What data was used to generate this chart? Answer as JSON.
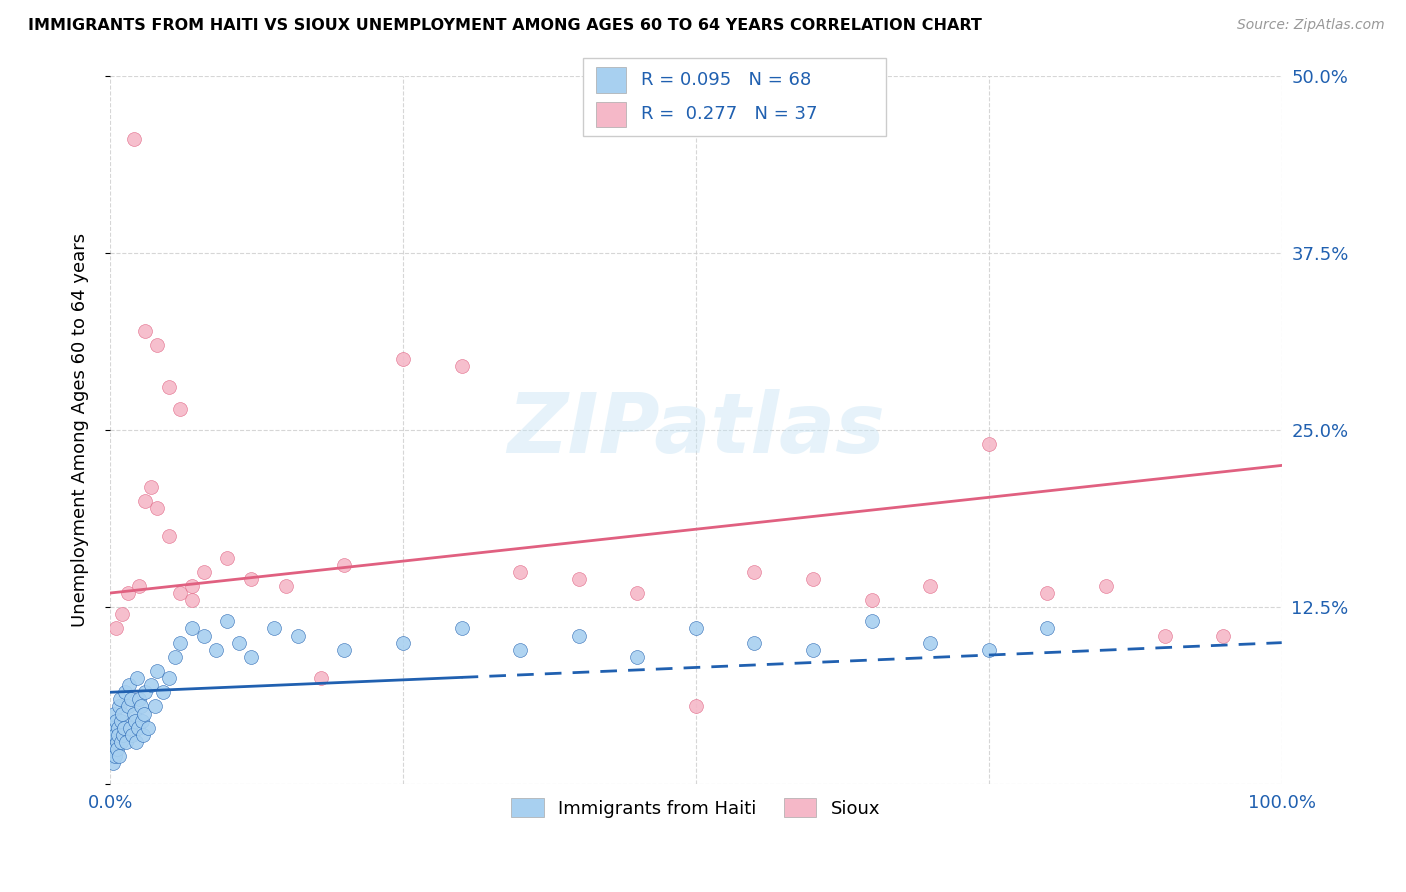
{
  "title": "IMMIGRANTS FROM HAITI VS SIOUX UNEMPLOYMENT AMONG AGES 60 TO 64 YEARS CORRELATION CHART",
  "source": "Source: ZipAtlas.com",
  "ylabel": "Unemployment Among Ages 60 to 64 years",
  "xlim": [
    0,
    100
  ],
  "ylim": [
    0,
    50
  ],
  "yticks": [
    0,
    12.5,
    25.0,
    37.5,
    50.0
  ],
  "yticklabels_right": [
    "",
    "12.5%",
    "25.0%",
    "37.5%",
    "50.0%"
  ],
  "xticks": [
    0,
    25,
    50,
    75,
    100
  ],
  "xticklabels": [
    "0.0%",
    "",
    "",
    "",
    "100.0%"
  ],
  "legend_r1": "0.095",
  "legend_n1": "68",
  "legend_r2": "0.277",
  "legend_n2": "37",
  "series1_label": "Immigrants from Haiti",
  "series2_label": "Sioux",
  "color1": "#a8d0f0",
  "color2": "#f5b8c8",
  "trendline1_color": "#2060b0",
  "trendline2_color": "#e06080",
  "watermark_text": "ZIPatlas",
  "blue_scatter_x": [
    0.1,
    0.15,
    0.2,
    0.25,
    0.3,
    0.35,
    0.4,
    0.45,
    0.5,
    0.55,
    0.6,
    0.65,
    0.7,
    0.75,
    0.8,
    0.85,
    0.9,
    0.95,
    1.0,
    1.1,
    1.2,
    1.3,
    1.4,
    1.5,
    1.6,
    1.7,
    1.8,
    1.9,
    2.0,
    2.1,
    2.2,
    2.3,
    2.4,
    2.5,
    2.6,
    2.7,
    2.8,
    2.9,
    3.0,
    3.2,
    3.5,
    3.8,
    4.0,
    4.5,
    5.0,
    5.5,
    6.0,
    7.0,
    8.0,
    9.0,
    10.0,
    11.0,
    12.0,
    14.0,
    16.0,
    20.0,
    25.0,
    30.0,
    35.0,
    40.0,
    45.0,
    50.0,
    55.0,
    60.0,
    65.0,
    70.0,
    75.0,
    80.0
  ],
  "blue_scatter_y": [
    3.0,
    2.0,
    4.0,
    1.5,
    5.0,
    2.5,
    3.5,
    2.0,
    4.5,
    3.0,
    2.5,
    4.0,
    3.5,
    5.5,
    2.0,
    6.0,
    3.0,
    4.5,
    5.0,
    3.5,
    4.0,
    6.5,
    3.0,
    5.5,
    7.0,
    4.0,
    6.0,
    3.5,
    5.0,
    4.5,
    3.0,
    7.5,
    4.0,
    6.0,
    5.5,
    4.5,
    3.5,
    5.0,
    6.5,
    4.0,
    7.0,
    5.5,
    8.0,
    6.5,
    7.5,
    9.0,
    10.0,
    11.0,
    10.5,
    9.5,
    11.5,
    10.0,
    9.0,
    11.0,
    10.5,
    9.5,
    10.0,
    11.0,
    9.5,
    10.5,
    9.0,
    11.0,
    10.0,
    9.5,
    11.5,
    10.0,
    9.5,
    11.0
  ],
  "pink_scatter_x": [
    0.5,
    1.0,
    1.5,
    2.0,
    2.5,
    3.0,
    3.5,
    4.0,
    5.0,
    6.0,
    7.0,
    8.0,
    10.0,
    12.0,
    15.0,
    18.0,
    20.0,
    25.0,
    30.0,
    35.0,
    40.0,
    45.0,
    50.0,
    55.0,
    60.0,
    65.0,
    70.0,
    75.0,
    80.0,
    85.0,
    90.0,
    95.0,
    3.0,
    4.0,
    5.0,
    6.0,
    7.0
  ],
  "pink_scatter_y": [
    11.0,
    12.0,
    13.5,
    45.5,
    14.0,
    20.0,
    21.0,
    19.5,
    17.5,
    13.5,
    14.0,
    15.0,
    16.0,
    14.5,
    14.0,
    7.5,
    15.5,
    30.0,
    29.5,
    15.0,
    14.5,
    13.5,
    5.5,
    15.0,
    14.5,
    13.0,
    14.0,
    24.0,
    13.5,
    14.0,
    10.5,
    10.5,
    32.0,
    31.0,
    28.0,
    26.5,
    13.0
  ],
  "trendline_blue_start_x": 0,
  "trendline_blue_end_solid_x": 30,
  "trendline_blue_end_x": 100,
  "trendline_blue_start_y": 6.5,
  "trendline_blue_end_y": 10.0,
  "trendline_pink_start_x": 0,
  "trendline_pink_end_x": 100,
  "trendline_pink_start_y": 13.5,
  "trendline_pink_end_y": 22.5
}
